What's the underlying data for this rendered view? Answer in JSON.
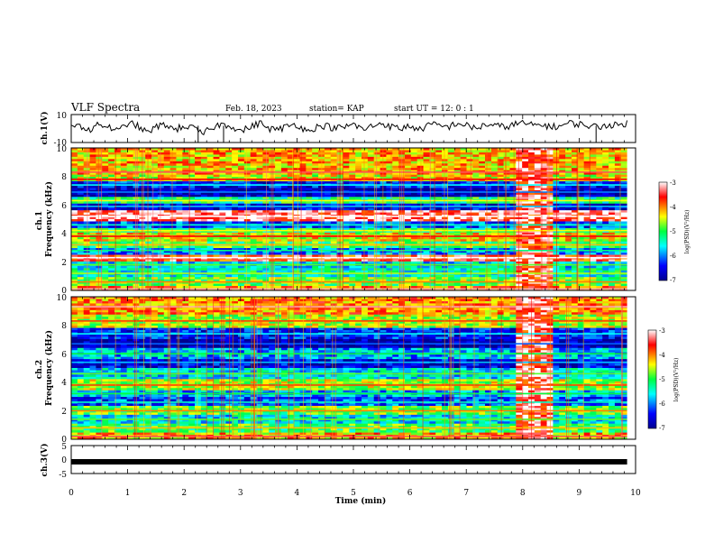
{
  "header": {
    "title": "VLF Spectra",
    "date": "Feb. 18, 2023",
    "station": "station= KAP",
    "start": "start  UT =   12: 0  : 1"
  },
  "chart_data": [
    {
      "type": "line",
      "id": "ch1-waveform",
      "ylabel": "ch.1(V)",
      "ylim": [
        -10,
        10
      ],
      "yticks": [
        "10",
        "-10"
      ],
      "xlim": [
        0,
        10
      ],
      "x_end": 9.85,
      "series": [
        {
          "values": [
            0,
            2,
            -1,
            3,
            1,
            -2,
            4,
            2,
            -3,
            1,
            3,
            -1,
            2,
            0,
            -4,
            1,
            3,
            2,
            -2,
            1,
            4,
            0,
            -1,
            2,
            3,
            -2,
            1,
            2,
            0,
            1,
            3,
            -1,
            2,
            4,
            1,
            0,
            2,
            -1,
            3,
            2,
            1,
            4,
            2,
            0,
            3,
            2,
            1,
            3,
            4,
            2,
            3,
            1,
            2,
            4,
            3,
            2,
            1,
            3,
            2,
            4
          ]
        }
      ],
      "spikes": [
        {
          "x": 2.25,
          "low": -10
        },
        {
          "x": 2.7,
          "low": -10
        },
        {
          "x": 9.3,
          "low": -10
        }
      ]
    },
    {
      "type": "heatmap",
      "id": "ch1-spectrogram",
      "ylabel": "ch.1\nFrequency (kHz)",
      "ylim": [
        0,
        10
      ],
      "xlim": [
        0,
        10
      ],
      "x_end": 9.85,
      "yticks": [
        "0",
        "2",
        "4",
        "6",
        "8",
        "10"
      ],
      "colorbar": {
        "label": "log(PSD)(V²/Hz)",
        "range": [
          -7,
          -3
        ],
        "ticks": [
          "-3",
          "-4",
          "-5",
          "-6",
          "-7"
        ]
      },
      "bands": [
        {
          "f": 8.3,
          "level": -4.2
        },
        {
          "f": 7.8,
          "level": -4.4
        },
        {
          "f": 7.4,
          "level": -6.4
        },
        {
          "f": 6.9,
          "level": -6.8
        },
        {
          "f": 6.3,
          "level": -5.2
        },
        {
          "f": 5.9,
          "level": -6.6
        },
        {
          "f": 5.2,
          "level": -3.3
        },
        {
          "f": 4.6,
          "level": -6.2
        },
        {
          "f": 4.2,
          "level": -5.2
        },
        {
          "f": 3.8,
          "level": -4.4
        },
        {
          "f": 3.2,
          "level": -5.0
        },
        {
          "f": 2.8,
          "level": -6.0
        },
        {
          "f": 2.3,
          "level": -3.6
        },
        {
          "f": 1.8,
          "level": -5.6
        },
        {
          "f": 1.2,
          "level": -5.4
        },
        {
          "f": 0.6,
          "level": -4.8
        },
        {
          "f": 0.1,
          "level": -4.0
        }
      ],
      "burst": {
        "x_start": 7.9,
        "x_end": 8.55,
        "level": -3.4
      }
    },
    {
      "type": "heatmap",
      "id": "ch2-spectrogram",
      "ylabel": "ch.2\nFrequency (kHz)",
      "ylim": [
        0,
        10
      ],
      "xlim": [
        0,
        10
      ],
      "x_end": 9.85,
      "yticks": [
        "0",
        "2",
        "4",
        "6",
        "8",
        "10"
      ],
      "colorbar": {
        "label": "log(PSD)(V²/Hz)",
        "range": [
          -7,
          -3
        ],
        "ticks": [
          "-3",
          "-4",
          "-5",
          "-6",
          "-7"
        ]
      },
      "bands": [
        {
          "f": 9.3,
          "level": -4.0
        },
        {
          "f": 8.3,
          "level": -4.6
        },
        {
          "f": 7.4,
          "level": -6.4
        },
        {
          "f": 6.7,
          "level": -6.9
        },
        {
          "f": 6.0,
          "level": -5.8
        },
        {
          "f": 5.4,
          "level": -6.6
        },
        {
          "f": 4.6,
          "level": -5.6
        },
        {
          "f": 3.8,
          "level": -4.6
        },
        {
          "f": 3.2,
          "level": -5.8
        },
        {
          "f": 2.6,
          "level": -6.2
        },
        {
          "f": 2.0,
          "level": -4.8
        },
        {
          "f": 1.4,
          "level": -5.6
        },
        {
          "f": 0.8,
          "level": -5.0
        },
        {
          "f": 0.2,
          "level": -4.2
        }
      ],
      "burst": {
        "x_start": 7.9,
        "x_end": 8.55,
        "level": -3.4
      }
    },
    {
      "type": "line",
      "id": "ch3-waveform",
      "ylabel": "ch.3(V)",
      "ylim": [
        -5,
        5
      ],
      "yticks": [
        "5",
        "0",
        "-5"
      ],
      "xlim": [
        0,
        10
      ],
      "x_end": 9.85,
      "series": [
        {
          "values": [
            -0.8,
            -0.8,
            -0.8,
            -0.8,
            -0.8
          ]
        }
      ],
      "xlabel": "Time (min)",
      "xticks": [
        "0",
        "1",
        "2",
        "3",
        "4",
        "5",
        "6",
        "7",
        "8",
        "9",
        "10"
      ]
    }
  ]
}
